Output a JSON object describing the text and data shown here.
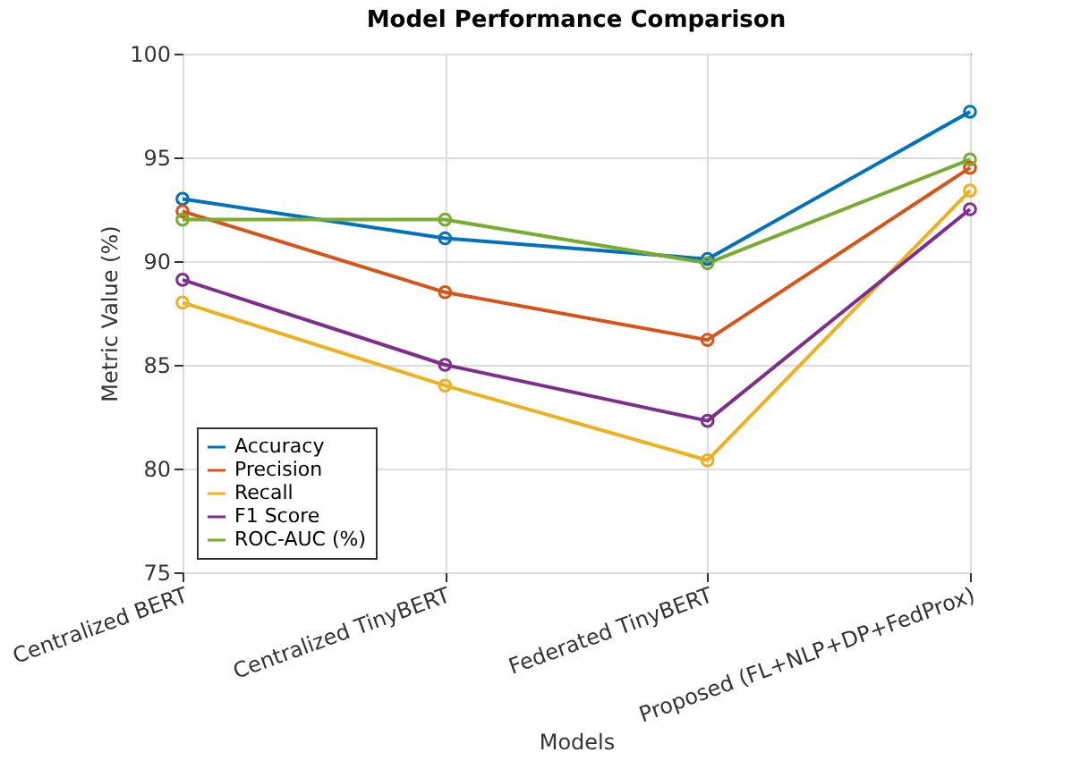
{
  "chart_data": {
    "type": "line",
    "title": "Model Performance Comparison",
    "xlabel": "Models",
    "ylabel": "Metric Value (%)",
    "categories": [
      "Centralized BERT",
      "Centralized TinyBERT",
      "Federated TinyBERT",
      "Proposed (FL+NLP+DP+FedProx)"
    ],
    "series": [
      {
        "name": "Accuracy",
        "color": "#0072bd",
        "values": [
          93.0,
          91.1,
          90.1,
          97.2
        ]
      },
      {
        "name": "Precision",
        "color": "#d95319",
        "values": [
          92.4,
          88.5,
          86.2,
          94.5
        ]
      },
      {
        "name": "Recall",
        "color": "#edb120",
        "values": [
          88.0,
          84.0,
          80.4,
          93.4
        ]
      },
      {
        "name": "F1 Score",
        "color": "#7e2f8e",
        "values": [
          89.1,
          85.0,
          82.3,
          92.5
        ]
      },
      {
        "name": "ROC-AUC (%)",
        "color": "#77ac30",
        "values": [
          92.0,
          92.0,
          89.9,
          94.9
        ]
      }
    ],
    "ylim": [
      75,
      100
    ],
    "yticks": [
      75,
      80,
      85,
      90,
      95,
      100
    ],
    "grid": true,
    "legend": "bottom left",
    "marker": "circle"
  }
}
